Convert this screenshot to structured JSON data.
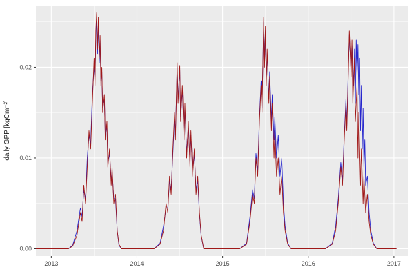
{
  "figure": {
    "background": "#ffffff",
    "panel_bg": "#ebebeb",
    "grid_major_color": "#ffffff",
    "grid_minor_color": "#ffffff",
    "tick_color": "#333333",
    "tick_label_color": "#4d4d4d"
  },
  "chart_data": {
    "type": "line",
    "title": "",
    "xlabel": "",
    "ylabel": "daily GPP [kgCm⁻²]",
    "grid": true,
    "legend": "none",
    "xlim": [
      2012.82,
      2017.17
    ],
    "ylim": [
      -0.0008,
      0.0268
    ],
    "x_ticks": {
      "major": [
        2013,
        2014,
        2015,
        2016,
        2017
      ],
      "minor": [
        2013.5,
        2014.5,
        2015.5,
        2016.5
      ],
      "labels": [
        "2013",
        "2014",
        "2015",
        "2016",
        "2017"
      ]
    },
    "y_ticks": {
      "major": [
        0,
        0.01,
        0.02
      ],
      "minor": [
        0.005,
        0.015,
        0.025
      ],
      "labels": [
        "0.00",
        "0.01",
        "0.02"
      ]
    },
    "series": [
      {
        "name": "series-blue",
        "color": "#2525cd",
        "points": [
          [
            2012.82,
            0
          ],
          [
            2012.9,
            0
          ],
          [
            2013.0,
            0
          ],
          [
            2013.1,
            0
          ],
          [
            2013.2,
            0
          ],
          [
            2013.25,
            0.0004
          ],
          [
            2013.3,
            0.002
          ],
          [
            2013.34,
            0.0045
          ],
          [
            2013.36,
            0.0035
          ],
          [
            2013.38,
            0.0065
          ],
          [
            2013.4,
            0.0055
          ],
          [
            2013.42,
            0.01
          ],
          [
            2013.44,
            0.0125
          ],
          [
            2013.46,
            0.0115
          ],
          [
            2013.48,
            0.017
          ],
          [
            2013.5,
            0.02
          ],
          [
            2013.51,
            0.019
          ],
          [
            2013.52,
            0.023
          ],
          [
            2013.53,
            0.0255
          ],
          [
            2013.54,
            0.0215
          ],
          [
            2013.55,
            0.025
          ],
          [
            2013.56,
            0.0205
          ],
          [
            2013.57,
            0.023
          ],
          [
            2013.58,
            0.0185
          ],
          [
            2013.59,
            0.0195
          ],
          [
            2013.6,
            0.0155
          ],
          [
            2013.62,
            0.0165
          ],
          [
            2013.63,
            0.0125
          ],
          [
            2013.65,
            0.0135
          ],
          [
            2013.66,
            0.0095
          ],
          [
            2013.68,
            0.0105
          ],
          [
            2013.7,
            0.0075
          ],
          [
            2013.71,
            0.0085
          ],
          [
            2013.73,
            0.0055
          ],
          [
            2013.75,
            0.0055
          ],
          [
            2013.77,
            0.002
          ],
          [
            2013.79,
            0.0004
          ],
          [
            2013.82,
            0
          ],
          [
            2013.9,
            0
          ],
          [
            2014.0,
            0
          ],
          [
            2014.1,
            0
          ],
          [
            2014.2,
            0
          ],
          [
            2014.27,
            0.0006
          ],
          [
            2014.31,
            0.0025
          ],
          [
            2014.34,
            0.0045
          ],
          [
            2014.36,
            0.0045
          ],
          [
            2014.38,
            0.0075
          ],
          [
            2014.4,
            0.0065
          ],
          [
            2014.42,
            0.0105
          ],
          [
            2014.44,
            0.0145
          ],
          [
            2014.45,
            0.0125
          ],
          [
            2014.47,
            0.02
          ],
          [
            2014.48,
            0.0165
          ],
          [
            2014.5,
            0.0197
          ],
          [
            2014.51,
            0.0145
          ],
          [
            2014.53,
            0.0175
          ],
          [
            2014.55,
            0.0125
          ],
          [
            2014.56,
            0.0155
          ],
          [
            2014.58,
            0.0105
          ],
          [
            2014.6,
            0.0135
          ],
          [
            2014.62,
            0.0095
          ],
          [
            2014.63,
            0.0125
          ],
          [
            2014.65,
            0.0085
          ],
          [
            2014.67,
            0.0105
          ],
          [
            2014.69,
            0.0065
          ],
          [
            2014.71,
            0.0075
          ],
          [
            2014.73,
            0.0038
          ],
          [
            2014.75,
            0.0014
          ],
          [
            2014.78,
            0
          ],
          [
            2014.9,
            0
          ],
          [
            2015.0,
            0
          ],
          [
            2015.1,
            0
          ],
          [
            2015.2,
            0
          ],
          [
            2015.28,
            0.0006
          ],
          [
            2015.32,
            0.0035
          ],
          [
            2015.35,
            0.0065
          ],
          [
            2015.37,
            0.0055
          ],
          [
            2015.39,
            0.0105
          ],
          [
            2015.41,
            0.0085
          ],
          [
            2015.43,
            0.0145
          ],
          [
            2015.45,
            0.0185
          ],
          [
            2015.46,
            0.0155
          ],
          [
            2015.48,
            0.025
          ],
          [
            2015.49,
            0.0205
          ],
          [
            2015.5,
            0.024
          ],
          [
            2015.51,
            0.0185
          ],
          [
            2015.52,
            0.0215
          ],
          [
            2015.54,
            0.0165
          ],
          [
            2015.55,
            0.0195
          ],
          [
            2015.57,
            0.014
          ],
          [
            2015.58,
            0.017
          ],
          [
            2015.6,
            0.012
          ],
          [
            2015.61,
            0.0145
          ],
          [
            2015.63,
            0.01
          ],
          [
            2015.65,
            0.0125
          ],
          [
            2015.67,
            0.008
          ],
          [
            2015.69,
            0.01
          ],
          [
            2015.71,
            0.005
          ],
          [
            2015.73,
            0.0025
          ],
          [
            2015.76,
            0.0006
          ],
          [
            2015.8,
            0
          ],
          [
            2015.9,
            0
          ],
          [
            2016.0,
            0
          ],
          [
            2016.1,
            0
          ],
          [
            2016.2,
            0
          ],
          [
            2016.28,
            0.0006
          ],
          [
            2016.32,
            0.0025
          ],
          [
            2016.35,
            0.0055
          ],
          [
            2016.38,
            0.0095
          ],
          [
            2016.4,
            0.0075
          ],
          [
            2016.42,
            0.0125
          ],
          [
            2016.44,
            0.0165
          ],
          [
            2016.45,
            0.0135
          ],
          [
            2016.47,
            0.0205
          ],
          [
            2016.48,
            0.0235
          ],
          [
            2016.5,
            0.0195
          ],
          [
            2016.51,
            0.0225
          ],
          [
            2016.53,
            0.018
          ],
          [
            2016.54,
            0.022
          ],
          [
            2016.55,
            0.016
          ],
          [
            2016.56,
            0.023
          ],
          [
            2016.57,
            0.019
          ],
          [
            2016.58,
            0.0225
          ],
          [
            2016.59,
            0.017
          ],
          [
            2016.6,
            0.021
          ],
          [
            2016.61,
            0.013
          ],
          [
            2016.62,
            0.018
          ],
          [
            2016.63,
            0.011
          ],
          [
            2016.64,
            0.0155
          ],
          [
            2016.65,
            0.009
          ],
          [
            2016.66,
            0.012
          ],
          [
            2016.67,
            0.007
          ],
          [
            2016.69,
            0.008
          ],
          [
            2016.71,
            0.004
          ],
          [
            2016.73,
            0.002
          ],
          [
            2016.76,
            0.0006
          ],
          [
            2016.8,
            0
          ],
          [
            2016.9,
            0
          ],
          [
            2017.0,
            0
          ],
          [
            2017.03,
            0
          ]
        ]
      },
      {
        "name": "series-red",
        "color": "#a01818",
        "points": [
          [
            2012.82,
            0
          ],
          [
            2012.9,
            0
          ],
          [
            2013.0,
            0
          ],
          [
            2013.1,
            0
          ],
          [
            2013.2,
            0
          ],
          [
            2013.25,
            0.0003
          ],
          [
            2013.3,
            0.0015
          ],
          [
            2013.34,
            0.004
          ],
          [
            2013.36,
            0.003
          ],
          [
            2013.38,
            0.007
          ],
          [
            2013.4,
            0.005
          ],
          [
            2013.42,
            0.009
          ],
          [
            2013.44,
            0.013
          ],
          [
            2013.46,
            0.011
          ],
          [
            2013.48,
            0.016
          ],
          [
            2013.5,
            0.021
          ],
          [
            2013.51,
            0.018
          ],
          [
            2013.52,
            0.024
          ],
          [
            2013.53,
            0.026
          ],
          [
            2013.54,
            0.022
          ],
          [
            2013.55,
            0.0255
          ],
          [
            2013.56,
            0.021
          ],
          [
            2013.57,
            0.0235
          ],
          [
            2013.58,
            0.018
          ],
          [
            2013.59,
            0.02
          ],
          [
            2013.6,
            0.015
          ],
          [
            2013.62,
            0.017
          ],
          [
            2013.63,
            0.012
          ],
          [
            2013.65,
            0.014
          ],
          [
            2013.66,
            0.009
          ],
          [
            2013.68,
            0.011
          ],
          [
            2013.7,
            0.007
          ],
          [
            2013.71,
            0.009
          ],
          [
            2013.73,
            0.005
          ],
          [
            2013.75,
            0.006
          ],
          [
            2013.77,
            0.002
          ],
          [
            2013.79,
            0.0005
          ],
          [
            2013.82,
            0
          ],
          [
            2013.9,
            0
          ],
          [
            2014.0,
            0
          ],
          [
            2014.1,
            0
          ],
          [
            2014.2,
            0
          ],
          [
            2014.27,
            0.0005
          ],
          [
            2014.31,
            0.002
          ],
          [
            2014.34,
            0.005
          ],
          [
            2014.36,
            0.004
          ],
          [
            2014.38,
            0.008
          ],
          [
            2014.4,
            0.006
          ],
          [
            2014.42,
            0.011
          ],
          [
            2014.44,
            0.015
          ],
          [
            2014.45,
            0.012
          ],
          [
            2014.47,
            0.0205
          ],
          [
            2014.48,
            0.016
          ],
          [
            2014.5,
            0.0202
          ],
          [
            2014.51,
            0.014
          ],
          [
            2014.53,
            0.018
          ],
          [
            2014.55,
            0.012
          ],
          [
            2014.56,
            0.016
          ],
          [
            2014.58,
            0.01
          ],
          [
            2014.6,
            0.014
          ],
          [
            2014.62,
            0.009
          ],
          [
            2014.63,
            0.013
          ],
          [
            2014.65,
            0.008
          ],
          [
            2014.67,
            0.011
          ],
          [
            2014.69,
            0.006
          ],
          [
            2014.71,
            0.008
          ],
          [
            2014.73,
            0.004
          ],
          [
            2014.75,
            0.0015
          ],
          [
            2014.78,
            0
          ],
          [
            2014.9,
            0
          ],
          [
            2015.0,
            0
          ],
          [
            2015.1,
            0
          ],
          [
            2015.2,
            0
          ],
          [
            2015.28,
            0.0005
          ],
          [
            2015.32,
            0.003
          ],
          [
            2015.35,
            0.006
          ],
          [
            2015.37,
            0.005
          ],
          [
            2015.39,
            0.01
          ],
          [
            2015.41,
            0.008
          ],
          [
            2015.43,
            0.014
          ],
          [
            2015.45,
            0.018
          ],
          [
            2015.46,
            0.015
          ],
          [
            2015.48,
            0.0255
          ],
          [
            2015.49,
            0.02
          ],
          [
            2015.5,
            0.0245
          ],
          [
            2015.51,
            0.018
          ],
          [
            2015.52,
            0.022
          ],
          [
            2015.54,
            0.016
          ],
          [
            2015.55,
            0.019
          ],
          [
            2015.57,
            0.013
          ],
          [
            2015.58,
            0.016
          ],
          [
            2015.6,
            0.01
          ],
          [
            2015.61,
            0.013
          ],
          [
            2015.63,
            0.008
          ],
          [
            2015.65,
            0.01
          ],
          [
            2015.67,
            0.006
          ],
          [
            2015.69,
            0.008
          ],
          [
            2015.71,
            0.004
          ],
          [
            2015.73,
            0.002
          ],
          [
            2015.76,
            0.0005
          ],
          [
            2015.8,
            0
          ],
          [
            2015.9,
            0
          ],
          [
            2016.0,
            0
          ],
          [
            2016.1,
            0
          ],
          [
            2016.2,
            0
          ],
          [
            2016.28,
            0.0005
          ],
          [
            2016.32,
            0.002
          ],
          [
            2016.35,
            0.005
          ],
          [
            2016.38,
            0.009
          ],
          [
            2016.4,
            0.007
          ],
          [
            2016.42,
            0.012
          ],
          [
            2016.44,
            0.016
          ],
          [
            2016.45,
            0.013
          ],
          [
            2016.47,
            0.02
          ],
          [
            2016.48,
            0.024
          ],
          [
            2016.5,
            0.019
          ],
          [
            2016.51,
            0.023
          ],
          [
            2016.52,
            0.016
          ],
          [
            2016.54,
            0.021
          ],
          [
            2016.55,
            0.014
          ],
          [
            2016.57,
            0.018
          ],
          [
            2016.58,
            0.01
          ],
          [
            2016.59,
            0.015
          ],
          [
            2016.61,
            0.007
          ],
          [
            2016.62,
            0.011
          ],
          [
            2016.64,
            0.005
          ],
          [
            2016.65,
            0.008
          ],
          [
            2016.67,
            0.004
          ],
          [
            2016.69,
            0.006
          ],
          [
            2016.71,
            0.003
          ],
          [
            2016.73,
            0.0015
          ],
          [
            2016.76,
            0.0005
          ],
          [
            2016.8,
            0
          ],
          [
            2016.9,
            0
          ],
          [
            2017.0,
            0
          ],
          [
            2017.03,
            0
          ]
        ]
      }
    ]
  }
}
